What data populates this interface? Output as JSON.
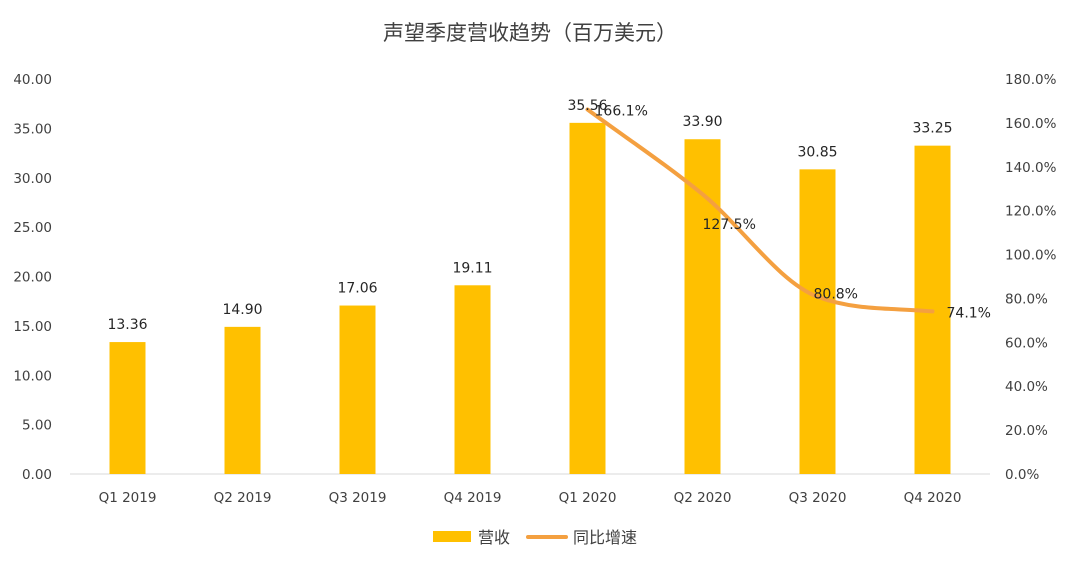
{
  "colors": {
    "bar": "#FFC000",
    "line": "#F4A040",
    "axis": "#D9D9D9",
    "text": "#404040"
  },
  "chart_data": {
    "type": "bar",
    "title": "声望季度营收趋势（百万美元）",
    "categories": [
      "Q1 2019",
      "Q2 2019",
      "Q3 2019",
      "Q4 2019",
      "Q1 2020",
      "Q2 2020",
      "Q3 2020",
      "Q4 2020"
    ],
    "series": [
      {
        "name": "营收",
        "type": "bar",
        "axis": "left",
        "values": [
          13.36,
          14.9,
          17.06,
          19.11,
          35.56,
          33.9,
          30.85,
          33.25
        ],
        "labels": [
          "13.36",
          "14.90",
          "17.06",
          "19.11",
          "35.56",
          "33.90",
          "30.85",
          "33.25"
        ]
      },
      {
        "name": "同比增速",
        "type": "line",
        "axis": "right",
        "smooth": true,
        "values": [
          null,
          null,
          null,
          null,
          166.1,
          127.5,
          80.8,
          74.1
        ],
        "labels": [
          "",
          "",
          "",
          "",
          "166.1%",
          "127.5%",
          "80.8%",
          "74.1%"
        ]
      }
    ],
    "y_left": {
      "ylim": [
        0,
        40
      ],
      "ticks": [
        "0.00",
        "5.00",
        "10.00",
        "15.00",
        "20.00",
        "25.00",
        "30.00",
        "35.00",
        "40.00"
      ]
    },
    "y_right": {
      "ylim": [
        0,
        180
      ],
      "ticks": [
        "0.0%",
        "20.0%",
        "40.0%",
        "60.0%",
        "80.0%",
        "100.0%",
        "120.0%",
        "140.0%",
        "160.0%",
        "180.0%"
      ]
    },
    "grid": false,
    "legend": "bottom-center"
  }
}
